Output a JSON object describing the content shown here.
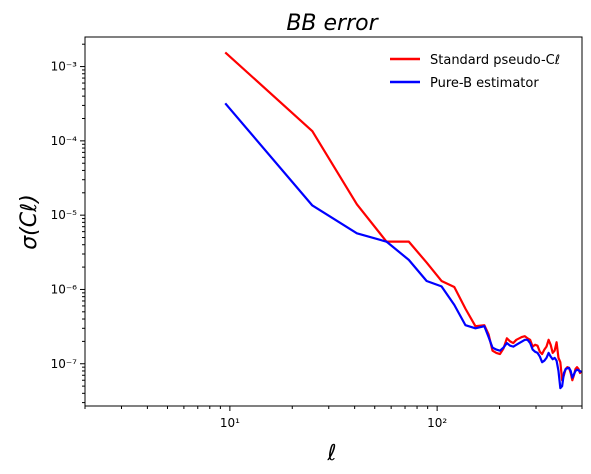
{
  "chart_data": {
    "type": "line",
    "title": "BB error",
    "xlabel": "ℓ",
    "ylabel": "σ(Cℓ)",
    "xscale": "log",
    "yscale": "log",
    "xlim": [
      2,
      500
    ],
    "ylim": [
      2.7e-08,
      0.0025
    ],
    "x_ticks": [
      {
        "value": 10,
        "label": "10¹"
      },
      {
        "value": 100,
        "label": "10²"
      }
    ],
    "y_ticks": [
      {
        "value": 1e-07,
        "label": "10⁻⁷"
      },
      {
        "value": 1e-06,
        "label": "10⁻⁶"
      },
      {
        "value": 1e-05,
        "label": "10⁻⁵"
      },
      {
        "value": 0.0001,
        "label": "10⁻⁴"
      },
      {
        "value": 0.001,
        "label": "10⁻³"
      }
    ],
    "legend_position": "top-right",
    "grid": false,
    "series": [
      {
        "name": "Standard pseudo-Cℓ",
        "color": "#ff0000",
        "x": [
          9.5,
          25,
          41,
          57,
          73,
          89,
          105,
          121,
          137,
          153,
          169,
          177,
          185,
          193,
          201,
          209,
          217,
          225,
          233,
          241,
          249,
          257,
          265,
          273,
          281,
          289,
          297,
          305,
          313,
          321,
          329,
          337,
          345,
          353,
          361,
          369,
          377,
          385,
          393,
          401,
          409,
          417,
          425,
          433,
          441,
          449,
          457,
          465,
          473,
          481,
          489,
          497
        ],
        "y": [
          0.00155,
          0.000135,
          1.4e-05,
          4.4e-06,
          4.4e-06,
          2.3e-06,
          1.3e-06,
          1.08e-06,
          5.5e-07,
          3.2e-07,
          3.3e-07,
          2.5e-07,
          1.5e-07,
          1.4e-07,
          1.35e-07,
          1.6e-07,
          2.2e-07,
          2e-07,
          1.9e-07,
          2.1e-07,
          2.2e-07,
          2.3e-07,
          2.35e-07,
          2.2e-07,
          2.1e-07,
          1.7e-07,
          1.8e-07,
          1.75e-07,
          1.45e-07,
          1.35e-07,
          1.55e-07,
          1.7e-07,
          2.1e-07,
          1.8e-07,
          1.4e-07,
          1.5e-07,
          1.95e-07,
          1.2e-07,
          1.05e-07,
          6e-08,
          7e-08,
          8.5e-08,
          9e-08,
          8.8e-08,
          7.5e-08,
          6e-08,
          7e-08,
          8.5e-08,
          9e-08,
          8.5e-08,
          7.5e-08,
          8e-08
        ]
      },
      {
        "name": "Pure-B estimator",
        "color": "#0000ff",
        "x": [
          9.5,
          25,
          41,
          57,
          73,
          89,
          105,
          121,
          137,
          153,
          169,
          177,
          185,
          193,
          201,
          209,
          217,
          225,
          233,
          241,
          249,
          257,
          265,
          273,
          281,
          289,
          297,
          305,
          313,
          321,
          329,
          337,
          345,
          353,
          361,
          369,
          377,
          385,
          393,
          401,
          409,
          417,
          425,
          433,
          441,
          449,
          457,
          465,
          473,
          481,
          489,
          497
        ],
        "y": [
          0.00032,
          1.35e-05,
          5.7e-06,
          4.4e-06,
          2.5e-06,
          1.3e-06,
          1.1e-06,
          6.2e-07,
          3.3e-07,
          3e-07,
          3.2e-07,
          2.3e-07,
          1.65e-07,
          1.55e-07,
          1.5e-07,
          1.65e-07,
          1.9e-07,
          1.75e-07,
          1.7e-07,
          1.8e-07,
          1.9e-07,
          2e-07,
          2.1e-07,
          2.1e-07,
          1.9e-07,
          1.55e-07,
          1.45e-07,
          1.4e-07,
          1.25e-07,
          1.05e-07,
          1.1e-07,
          1.2e-07,
          1.4e-07,
          1.25e-07,
          1.15e-07,
          1.2e-07,
          1.1e-07,
          8e-08,
          4.7e-08,
          5e-08,
          7.5e-08,
          8.5e-08,
          8.7e-08,
          8.8e-08,
          8e-08,
          6.5e-08,
          7.2e-08,
          8e-08,
          8.3e-08,
          8.2e-08,
          7.8e-08,
          8e-08
        ]
      }
    ]
  }
}
